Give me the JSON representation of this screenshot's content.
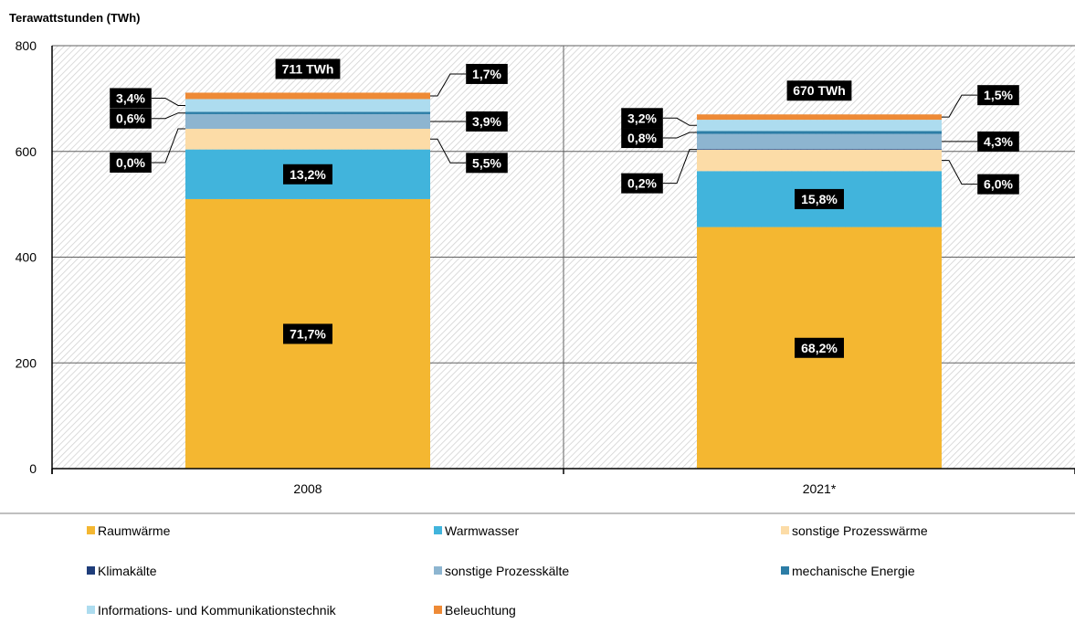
{
  "chart_data": {
    "type": "bar",
    "stacked": true,
    "ylabel": "Terawattstunden (TWh)",
    "ylim": [
      0,
      800
    ],
    "yticks": [
      0,
      200,
      400,
      600,
      800
    ],
    "categories": [
      "2008",
      "2021*"
    ],
    "totals": [
      "711 TWh",
      "670 TWh"
    ],
    "total_values": [
      711,
      670
    ],
    "grid": true,
    "legend_position": "bottom",
    "series": [
      {
        "name": "Raumwärme",
        "color": "#F4B731",
        "values": [
          509.8,
          456.9
        ],
        "labels": [
          "71,7%",
          "68,2%"
        ]
      },
      {
        "name": "Warmwasser",
        "color": "#41B4DC",
        "values": [
          93.9,
          105.9
        ],
        "labels": [
          "13,2%",
          "15,8%"
        ]
      },
      {
        "name": "sonstige Prozesswärme",
        "color": "#FCDCA7",
        "values": [
          39.1,
          40.2
        ],
        "labels": [
          "5,5%",
          "6,0%"
        ]
      },
      {
        "name": "Klimakälte",
        "color": "#1F3D7A",
        "values": [
          0.0,
          1.3
        ],
        "labels": [
          "0,0%",
          "0,2%"
        ]
      },
      {
        "name": "sonstige Prozesskälte",
        "color": "#8DB5D0",
        "values": [
          27.7,
          28.8
        ],
        "labels": [
          "3,9%",
          "4,3%"
        ]
      },
      {
        "name": "mechanische Energie",
        "color": "#2C7DA6",
        "values": [
          4.3,
          5.4
        ],
        "labels": [
          "0,6%",
          "0,8%"
        ]
      },
      {
        "name": "Informations- und Kommunikationstechnik",
        "color": "#ADDCEF",
        "values": [
          24.2,
          21.4
        ],
        "labels": [
          "3,4%",
          "3,2%"
        ]
      },
      {
        "name": "Beleuchtung",
        "color": "#EE8A36",
        "values": [
          12.1,
          10.1
        ],
        "labels": [
          "1,7%",
          "1,5%"
        ]
      }
    ]
  }
}
